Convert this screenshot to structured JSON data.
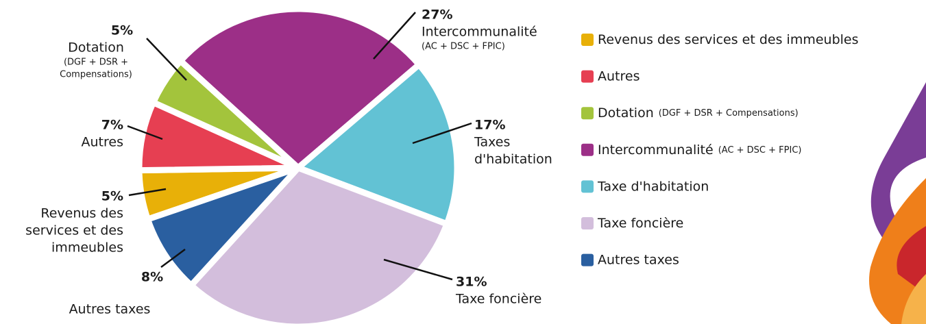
{
  "chart_data": {
    "type": "pie",
    "categories": [
      "Revenus des services et des immeubles",
      "Autres",
      "Dotation",
      "Intercommunalité",
      "Taxe d'habitation",
      "Taxe foncière",
      "Autres taxes"
    ],
    "legend_notes": [
      null,
      null,
      "(DGF + DSR + Compensations)",
      "(AC + DSC + FPIC)",
      null,
      null,
      null
    ],
    "slice_labels": [
      [
        "Revenus des",
        "services et des",
        "immeubles"
      ],
      [
        "Autres"
      ],
      [
        "Dotation"
      ],
      [
        "Intercommunalité"
      ],
      [
        "Taxes",
        "d'habitation"
      ],
      [
        "Taxe foncière"
      ],
      [
        "Autres taxes"
      ]
    ],
    "slice_notes": [
      null,
      null,
      [
        "(DGF + DSR +",
        "Compensations)"
      ],
      [
        "(AC + DSC + FPIC)"
      ],
      null,
      null,
      null
    ],
    "values": [
      5,
      7,
      5,
      27,
      17,
      31,
      8
    ],
    "value_labels": [
      "5%",
      "7%",
      "5%",
      "27%",
      "17%",
      "31%",
      "8%"
    ],
    "colors": [
      "#e8b008",
      "#e63f52",
      "#a3c43c",
      "#9c2f87",
      "#62c2d4",
      "#d3bedc",
      "#2a5fa0"
    ]
  }
}
